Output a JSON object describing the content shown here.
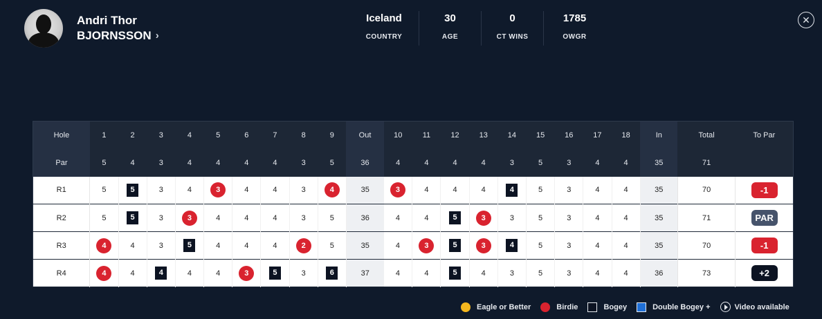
{
  "player": {
    "first_name": "Andri Thor",
    "last_name": "BJORNSSON",
    "chevron": "›"
  },
  "stats": [
    {
      "value": "Iceland",
      "label": "COUNTRY"
    },
    {
      "value": "30",
      "label": "AGE"
    },
    {
      "value": "0",
      "label": "CT WINS"
    },
    {
      "value": "1785",
      "label": "OWGR"
    }
  ],
  "close_icon": "✕",
  "scorecard": {
    "hole_label": "Hole",
    "par_label": "Par",
    "holes_front": [
      "1",
      "2",
      "3",
      "4",
      "5",
      "6",
      "7",
      "8",
      "9"
    ],
    "out_label": "Out",
    "holes_back": [
      "10",
      "11",
      "12",
      "13",
      "14",
      "15",
      "16",
      "17",
      "18"
    ],
    "in_label": "In",
    "total_label": "Total",
    "topar_label": "To Par",
    "par_front": [
      "5",
      "4",
      "3",
      "4",
      "4",
      "4",
      "4",
      "3",
      "5"
    ],
    "par_out": "36",
    "par_back": [
      "4",
      "4",
      "4",
      "4",
      "3",
      "5",
      "3",
      "4",
      "4"
    ],
    "par_in": "35",
    "par_total": "71",
    "rounds": [
      {
        "label": "R1",
        "front": [
          "5",
          "5",
          "3",
          "4",
          "3",
          "4",
          "4",
          "3",
          "4"
        ],
        "front_marks": [
          "",
          "bogey",
          "",
          "",
          "birdie",
          "",
          "",
          "",
          "birdie"
        ],
        "out": "35",
        "back": [
          "3",
          "4",
          "4",
          "4",
          "4",
          "5",
          "3",
          "4",
          "4"
        ],
        "back_marks": [
          "birdie",
          "",
          "",
          "",
          "bogey",
          "",
          "",
          "",
          ""
        ],
        "in": "35",
        "total": "70",
        "to_par": "-1",
        "to_par_style": "under"
      },
      {
        "label": "R2",
        "front": [
          "5",
          "5",
          "3",
          "3",
          "4",
          "4",
          "4",
          "3",
          "5"
        ],
        "front_marks": [
          "",
          "bogey",
          "",
          "birdie",
          "",
          "",
          "",
          "",
          ""
        ],
        "out": "36",
        "back": [
          "4",
          "4",
          "5",
          "3",
          "3",
          "5",
          "3",
          "4",
          "4"
        ],
        "back_marks": [
          "",
          "",
          "bogey",
          "birdie",
          "",
          "",
          "",
          "",
          ""
        ],
        "in": "35",
        "total": "71",
        "to_par": "PAR",
        "to_par_style": "even"
      },
      {
        "label": "R3",
        "front": [
          "4",
          "4",
          "3",
          "5",
          "4",
          "4",
          "4",
          "2",
          "5"
        ],
        "front_marks": [
          "birdie",
          "",
          "",
          "bogey",
          "",
          "",
          "",
          "birdie",
          ""
        ],
        "out": "35",
        "back": [
          "4",
          "3",
          "5",
          "3",
          "4",
          "5",
          "3",
          "4",
          "4"
        ],
        "back_marks": [
          "",
          "birdie",
          "bogey",
          "birdie",
          "bogey",
          "",
          "",
          "",
          ""
        ],
        "in": "35",
        "total": "70",
        "to_par": "-1",
        "to_par_style": "under"
      },
      {
        "label": "R4",
        "front": [
          "4",
          "4",
          "4",
          "4",
          "4",
          "3",
          "5",
          "3",
          "6"
        ],
        "front_marks": [
          "birdie",
          "",
          "bogey",
          "",
          "",
          "birdie",
          "bogey",
          "",
          "bogey"
        ],
        "out": "37",
        "back": [
          "4",
          "4",
          "5",
          "4",
          "3",
          "5",
          "3",
          "4",
          "4"
        ],
        "back_marks": [
          "",
          "",
          "bogey",
          "",
          "",
          "",
          "",
          "",
          ""
        ],
        "in": "36",
        "total": "73",
        "to_par": "+2",
        "to_par_style": "over"
      }
    ]
  },
  "legend": [
    {
      "label": "Eagle or Better",
      "kind": "dot",
      "color": "#f5b71e"
    },
    {
      "label": "Birdie",
      "kind": "dot",
      "color": "#d9232f"
    },
    {
      "label": "Bogey",
      "kind": "square",
      "color": "#0c1322"
    },
    {
      "label": "Double Bogey +",
      "kind": "square",
      "color": "#1f6fd6"
    },
    {
      "label": "Video available",
      "kind": "play",
      "color": "#e6e9ee"
    }
  ]
}
